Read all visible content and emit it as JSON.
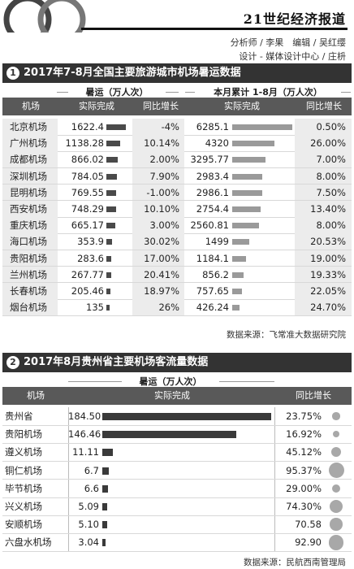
{
  "masthead": {
    "brand": "21世纪经济报道"
  },
  "credits": {
    "line1": "分析师 / 李果　编辑 / 吴红缨",
    "line2": "设计 - 媒体设计中心 / 庄枡"
  },
  "section1": {
    "num": "1",
    "title": "2017年7-8月全国主要旅游城市机场暑运数据",
    "group_a": "暑运（万人次）",
    "group_b": "本月累计 1-8月（万人次）",
    "headers": [
      "机场",
      "实际完成",
      "同比增长",
      "实际完成",
      "同比增长"
    ],
    "source": "数据来源：飞常准大数据研究院"
  },
  "section2": {
    "num": "2",
    "title": "2017年8月贵州省主要机场客流量数据",
    "group_a": "暑运（万人次）",
    "headers": [
      "机场",
      "实际完成",
      "同比增长"
    ],
    "source": "数据来源：民航西南管理局"
  },
  "chart_data": [
    {
      "type": "table",
      "title": "2017年7-8月全国主要旅游城市机场暑运数据",
      "columns": [
        "机场",
        "暑运实际完成",
        "暑运同比增长",
        "本月累计1-8月实际完成",
        "本月累计同比增长"
      ],
      "rows": [
        {
          "name": "北京机场",
          "summer": "1622.4",
          "summer_growth": "-4%",
          "ytd": "6285.1",
          "ytd_growth": "0.50%"
        },
        {
          "name": "广州机场",
          "summer": "1138.28",
          "summer_growth": "10.14%",
          "ytd": "4320",
          "ytd_growth": "26.00%"
        },
        {
          "name": "成都机场",
          "summer": "866.02",
          "summer_growth": "2.00%",
          "ytd": "3295.77",
          "ytd_growth": "7.00%"
        },
        {
          "name": "深圳机场",
          "summer": "784.05",
          "summer_growth": "7.90%",
          "ytd": "2983.4",
          "ytd_growth": "8.00%"
        },
        {
          "name": "昆明机场",
          "summer": "769.55",
          "summer_growth": "-1.00%",
          "ytd": "2986.1",
          "ytd_growth": "7.50%"
        },
        {
          "name": "西安机场",
          "summer": "748.29",
          "summer_growth": "10.10%",
          "ytd": "2754.4",
          "ytd_growth": "13.40%"
        },
        {
          "name": "重庆机场",
          "summer": "665.17",
          "summer_growth": "3.00%",
          "ytd": "2560.81",
          "ytd_growth": "8.00%"
        },
        {
          "name": "海口机场",
          "summer": "353.9",
          "summer_growth": "30.02%",
          "ytd": "1499",
          "ytd_growth": "20.53%"
        },
        {
          "name": "贵阳机场",
          "summer": "283.6",
          "summer_growth": "17.00%",
          "ytd": "1184.1",
          "ytd_growth": "19.00%"
        },
        {
          "name": "兰州机场",
          "summer": "267.77",
          "summer_growth": "20.41%",
          "ytd": "856.2",
          "ytd_growth": "19.33%"
        },
        {
          "name": "长春机场",
          "summer": "205.46",
          "summer_growth": "18.97%",
          "ytd": "757.65",
          "ytd_growth": "22.05%"
        },
        {
          "name": "烟台机场",
          "summer": "135",
          "summer_growth": "26%",
          "ytd": "426.24",
          "ytd_growth": "24.70%"
        }
      ]
    },
    {
      "type": "table",
      "title": "2017年8月贵州省主要机场客流量数据",
      "columns": [
        "机场",
        "实际完成",
        "同比增长"
      ],
      "rows": [
        {
          "name": "贵州省",
          "value": "184.50",
          "growth": "23.75%"
        },
        {
          "name": "贵阳机场",
          "value": "146.46",
          "growth": "16.92%"
        },
        {
          "name": "遵义机场",
          "value": "11.11",
          "growth": "45.12%"
        },
        {
          "name": "铜仁机场",
          "value": "6.7",
          "growth": "95.37%"
        },
        {
          "name": "毕节机场",
          "value": "6.6",
          "growth": "29.00%"
        },
        {
          "name": "兴义机场",
          "value": "5.09",
          "growth": "74.30%"
        },
        {
          "name": "安顺机场",
          "value": "5.10",
          "growth": "70.58"
        },
        {
          "name": "六盘水机场",
          "value": "3.04",
          "growth": "92.90"
        }
      ]
    }
  ]
}
